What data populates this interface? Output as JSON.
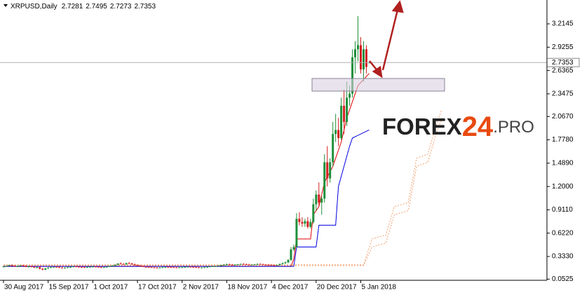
{
  "chart_data": {
    "type": "candlestick",
    "title": "XRPUSD,Daily",
    "watermark": {
      "main": "FOREX",
      "accent": "24",
      "suffix": ".PRO"
    },
    "bull_color": "#1f8f3a",
    "bear_color": "#d42020",
    "xlim": [
      -1.25,
      194.7
    ],
    "xticks": [
      {
        "value": 0,
        "label": "30 Aug 2017"
      },
      {
        "value": 16,
        "label": "15 Sep 2017"
      },
      {
        "value": 32,
        "label": "1 Oct 2017"
      },
      {
        "value": 48,
        "label": "17 Oct 2017"
      },
      {
        "value": 64,
        "label": "2 Nov 2017"
      },
      {
        "value": 80,
        "label": "18 Nov 2017"
      },
      {
        "value": 96,
        "label": "4 Dec 2017"
      },
      {
        "value": 112,
        "label": "20 Dec 2017"
      },
      {
        "value": 128,
        "label": "5 Jan 2018"
      }
    ],
    "ylim": [
      0.038,
      3.51
    ],
    "yticks": [
      3.2145,
      2.9255,
      2.6365,
      2.3475,
      {
        "value": 2.067,
        "label": "2.0670"
      },
      {
        "value": 1.778,
        "label": "1.7780"
      },
      {
        "value": 1.489,
        "label": "1.4890"
      },
      {
        "value": 1.2,
        "label": "1.2000"
      },
      {
        "value": 0.911,
        "label": "0.9110"
      },
      {
        "value": 0.622,
        "label": "0.6220"
      },
      {
        "value": 0.333,
        "label": "0.3330"
      },
      0.0525
    ],
    "candles": [
      [
        0.205,
        0.215,
        0.198,
        0.21
      ],
      [
        0.21,
        0.22,
        0.205,
        0.215
      ],
      [
        0.215,
        0.23,
        0.21,
        0.225
      ],
      [
        0.225,
        0.235,
        0.215,
        0.22
      ],
      [
        0.22,
        0.225,
        0.205,
        0.21
      ],
      [
        0.21,
        0.22,
        0.2,
        0.215
      ],
      [
        0.215,
        0.228,
        0.21,
        0.222
      ],
      [
        0.222,
        0.23,
        0.212,
        0.218
      ],
      [
        0.218,
        0.225,
        0.2,
        0.205
      ],
      [
        0.205,
        0.215,
        0.195,
        0.21
      ],
      [
        0.21,
        0.218,
        0.2,
        0.204
      ],
      [
        0.204,
        0.21,
        0.19,
        0.195
      ],
      [
        0.195,
        0.205,
        0.185,
        0.2
      ],
      [
        0.2,
        0.204,
        0.175,
        0.18
      ],
      [
        0.18,
        0.19,
        0.16,
        0.17
      ],
      [
        0.17,
        0.19,
        0.165,
        0.185
      ],
      [
        0.185,
        0.2,
        0.18,
        0.195
      ],
      [
        0.195,
        0.205,
        0.19,
        0.2
      ],
      [
        0.2,
        0.21,
        0.195,
        0.205
      ],
      [
        0.205,
        0.215,
        0.198,
        0.2
      ],
      [
        0.2,
        0.21,
        0.19,
        0.195
      ],
      [
        0.195,
        0.2,
        0.185,
        0.19
      ],
      [
        0.19,
        0.198,
        0.182,
        0.195
      ],
      [
        0.195,
        0.205,
        0.19,
        0.2
      ],
      [
        0.2,
        0.21,
        0.196,
        0.204
      ],
      [
        0.204,
        0.215,
        0.2,
        0.21
      ],
      [
        0.21,
        0.218,
        0.204,
        0.206
      ],
      [
        0.206,
        0.212,
        0.198,
        0.202
      ],
      [
        0.202,
        0.208,
        0.196,
        0.2
      ],
      [
        0.2,
        0.206,
        0.194,
        0.198
      ],
      [
        0.198,
        0.205,
        0.192,
        0.202
      ],
      [
        0.202,
        0.21,
        0.198,
        0.205
      ],
      [
        0.205,
        0.212,
        0.2,
        0.208
      ],
      [
        0.208,
        0.215,
        0.202,
        0.205
      ],
      [
        0.205,
        0.21,
        0.198,
        0.2
      ],
      [
        0.2,
        0.206,
        0.195,
        0.198
      ],
      [
        0.198,
        0.204,
        0.192,
        0.2
      ],
      [
        0.2,
        0.21,
        0.196,
        0.206
      ],
      [
        0.206,
        0.22,
        0.202,
        0.215
      ],
      [
        0.215,
        0.225,
        0.21,
        0.22
      ],
      [
        0.22,
        0.235,
        0.215,
        0.23
      ],
      [
        0.23,
        0.25,
        0.225,
        0.245
      ],
      [
        0.245,
        0.26,
        0.235,
        0.24
      ],
      [
        0.24,
        0.25,
        0.23,
        0.235
      ],
      [
        0.235,
        0.255,
        0.23,
        0.25
      ],
      [
        0.25,
        0.265,
        0.24,
        0.245
      ],
      [
        0.245,
        0.255,
        0.23,
        0.235
      ],
      [
        0.235,
        0.245,
        0.22,
        0.225
      ],
      [
        0.225,
        0.235,
        0.215,
        0.22
      ],
      [
        0.22,
        0.23,
        0.21,
        0.215
      ],
      [
        0.215,
        0.222,
        0.2,
        0.205
      ],
      [
        0.205,
        0.212,
        0.198,
        0.202
      ],
      [
        0.202,
        0.21,
        0.196,
        0.2
      ],
      [
        0.2,
        0.206,
        0.194,
        0.198
      ],
      [
        0.198,
        0.204,
        0.19,
        0.195
      ],
      [
        0.195,
        0.2,
        0.188,
        0.192
      ],
      [
        0.192,
        0.2,
        0.186,
        0.196
      ],
      [
        0.196,
        0.204,
        0.19,
        0.2
      ],
      [
        0.2,
        0.208,
        0.195,
        0.204
      ],
      [
        0.204,
        0.21,
        0.198,
        0.202
      ],
      [
        0.202,
        0.208,
        0.196,
        0.2
      ],
      [
        0.2,
        0.206,
        0.194,
        0.198
      ],
      [
        0.198,
        0.204,
        0.19,
        0.196
      ],
      [
        0.196,
        0.202,
        0.19,
        0.198
      ],
      [
        0.198,
        0.204,
        0.192,
        0.2
      ],
      [
        0.2,
        0.206,
        0.196,
        0.203
      ],
      [
        0.203,
        0.21,
        0.198,
        0.206
      ],
      [
        0.206,
        0.212,
        0.2,
        0.204
      ],
      [
        0.204,
        0.21,
        0.198,
        0.2
      ],
      [
        0.2,
        0.206,
        0.195,
        0.198
      ],
      [
        0.198,
        0.204,
        0.19,
        0.194
      ],
      [
        0.194,
        0.2,
        0.188,
        0.196
      ],
      [
        0.196,
        0.204,
        0.192,
        0.2
      ],
      [
        0.2,
        0.21,
        0.196,
        0.205
      ],
      [
        0.205,
        0.215,
        0.2,
        0.21
      ],
      [
        0.21,
        0.218,
        0.204,
        0.212
      ],
      [
        0.212,
        0.22,
        0.206,
        0.215
      ],
      [
        0.215,
        0.225,
        0.21,
        0.22
      ],
      [
        0.22,
        0.23,
        0.214,
        0.225
      ],
      [
        0.225,
        0.24,
        0.22,
        0.23
      ],
      [
        0.23,
        0.245,
        0.222,
        0.235
      ],
      [
        0.235,
        0.245,
        0.225,
        0.23
      ],
      [
        0.23,
        0.24,
        0.22,
        0.228
      ],
      [
        0.228,
        0.236,
        0.22,
        0.232
      ],
      [
        0.232,
        0.24,
        0.226,
        0.236
      ],
      [
        0.236,
        0.245,
        0.23,
        0.24
      ],
      [
        0.24,
        0.25,
        0.232,
        0.238
      ],
      [
        0.238,
        0.246,
        0.23,
        0.234
      ],
      [
        0.234,
        0.242,
        0.226,
        0.23
      ],
      [
        0.23,
        0.238,
        0.224,
        0.233
      ],
      [
        0.233,
        0.24,
        0.226,
        0.236
      ],
      [
        0.236,
        0.246,
        0.23,
        0.24
      ],
      [
        0.24,
        0.248,
        0.232,
        0.236
      ],
      [
        0.236,
        0.244,
        0.228,
        0.232
      ],
      [
        0.232,
        0.24,
        0.224,
        0.23
      ],
      [
        0.23,
        0.238,
        0.222,
        0.228
      ],
      [
        0.228,
        0.236,
        0.22,
        0.226
      ],
      [
        0.226,
        0.234,
        0.218,
        0.224
      ],
      [
        0.224,
        0.232,
        0.216,
        0.228
      ],
      [
        0.228,
        0.245,
        0.22,
        0.24
      ],
      [
        0.24,
        0.26,
        0.232,
        0.25
      ],
      [
        0.25,
        0.27,
        0.24,
        0.26
      ],
      [
        0.26,
        0.3,
        0.25,
        0.29
      ],
      [
        0.29,
        0.45,
        0.28,
        0.42
      ],
      [
        0.42,
        0.48,
        0.4,
        0.45
      ],
      [
        0.45,
        0.87,
        0.44,
        0.8
      ],
      [
        0.8,
        0.88,
        0.72,
        0.76
      ],
      [
        0.76,
        0.82,
        0.7,
        0.74
      ],
      [
        0.74,
        0.8,
        0.7,
        0.77
      ],
      [
        0.77,
        0.82,
        0.68,
        0.7
      ],
      [
        0.7,
        0.8,
        0.68,
        0.76
      ],
      [
        0.76,
        1.05,
        0.74,
        0.98
      ],
      [
        0.98,
        1.15,
        0.9,
        1.1
      ],
      [
        1.1,
        1.25,
        0.95,
        1.0
      ],
      [
        1.0,
        1.08,
        0.85,
        1.05
      ],
      [
        1.05,
        1.6,
        1.0,
        1.5
      ],
      [
        1.5,
        1.7,
        1.2,
        1.3
      ],
      [
        1.3,
        1.55,
        1.25,
        1.5
      ],
      [
        1.5,
        2.0,
        1.45,
        1.85
      ],
      [
        1.85,
        2.1,
        1.75,
        1.9
      ],
      [
        1.9,
        2.05,
        1.7,
        1.8
      ],
      [
        1.8,
        2.3,
        1.78,
        2.2
      ],
      [
        2.2,
        2.4,
        1.85,
        2.0
      ],
      [
        2.0,
        2.5,
        1.95,
        2.3
      ],
      [
        2.3,
        2.45,
        2.2,
        2.35
      ],
      [
        2.35,
        2.9,
        2.3,
        2.8
      ],
      [
        2.8,
        3.0,
        2.6,
        2.9
      ],
      [
        2.9,
        3.31,
        2.75,
        2.95
      ],
      [
        2.95,
        3.05,
        2.6,
        2.65
      ],
      [
        2.65,
        3.0,
        2.5,
        2.9
      ],
      [
        2.9,
        2.95,
        2.6,
        2.68
      ],
      [
        2.7281,
        2.7495,
        2.7273,
        2.7353
      ]
    ],
    "lines": [
      {
        "color": "#e00000",
        "dash": false,
        "x": [
          0,
          103,
          104,
          105,
          110,
          111,
          113,
          115,
          118,
          121,
          123,
          125,
          127,
          131
        ],
        "values": [
          0.21,
          0.21,
          0.3,
          0.55,
          0.55,
          0.85,
          0.95,
          1.25,
          1.45,
          1.75,
          2.05,
          2.25,
          2.45,
          2.6
        ]
      },
      {
        "color": "#0000e0",
        "dash": false,
        "x": [
          0,
          104,
          105,
          112,
          113,
          119,
          120,
          124,
          125,
          131
        ],
        "values": [
          0.21,
          0.21,
          0.45,
          0.45,
          0.72,
          0.72,
          1.2,
          1.7,
          1.8,
          1.9
        ]
      },
      {
        "color": "#f4a070",
        "dash": true,
        "x": [
          0,
          129,
          132,
          137,
          140,
          145,
          148,
          152,
          155,
          157
        ],
        "values": [
          0.22,
          0.22,
          0.45,
          0.5,
          0.85,
          0.9,
          1.45,
          1.5,
          1.85,
          2.05
        ]
      },
      {
        "color": "#f4a070",
        "dash": true,
        "x": [
          0,
          129,
          132,
          137,
          140,
          145,
          148,
          152,
          155,
          157
        ],
        "values": [
          0.23,
          0.23,
          0.55,
          0.6,
          0.95,
          1.0,
          1.55,
          1.6,
          1.95,
          2.15
        ]
      }
    ]
  }
}
